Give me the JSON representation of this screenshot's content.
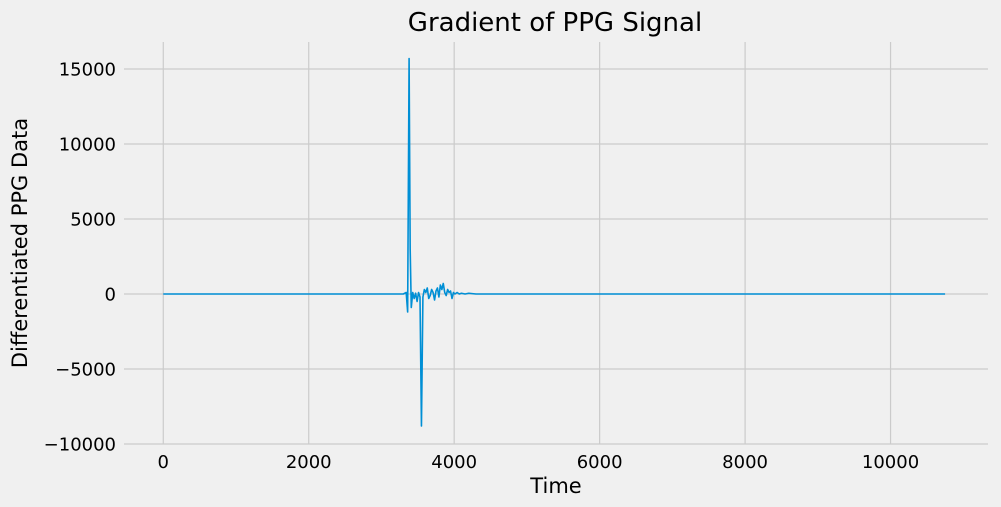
{
  "chart_data": {
    "type": "line",
    "title": "Gradient of PPG Signal",
    "xlabel": "Time",
    "ylabel": "Differentiated PPG Data",
    "xlim": [
      -540,
      11340
    ],
    "ylim": [
      -10000,
      16800
    ],
    "xticks": [
      0,
      2000,
      4000,
      6000,
      8000,
      10000
    ],
    "yticks": [
      -10000,
      -5000,
      0,
      5000,
      10000,
      15000
    ],
    "xtick_labels": [
      "0",
      "2000",
      "4000",
      "6000",
      "8000",
      "10000"
    ],
    "ytick_labels": [
      "−10000",
      "−5000",
      "0",
      "5000",
      "10000",
      "15000"
    ],
    "grid": true,
    "legend": "none",
    "colors": {
      "background": "#f0f0f0",
      "grid": "#cbcbcb",
      "line": "#008fd5"
    },
    "series": [
      {
        "x": [
          0,
          1000,
          2000,
          3000,
          3300,
          3340,
          3360,
          3380,
          3395,
          3410,
          3430,
          3450,
          3470,
          3490,
          3510,
          3530,
          3550,
          3570,
          3590,
          3610,
          3630,
          3650,
          3670,
          3690,
          3710,
          3730,
          3750,
          3770,
          3790,
          3810,
          3830,
          3850,
          3870,
          3890,
          3910,
          3930,
          3950,
          3970,
          3990,
          4010,
          4040,
          4070,
          4100,
          4150,
          4200,
          4300,
          5000,
          6000,
          7000,
          8000,
          9000,
          10000,
          10750
        ],
        "y": [
          0,
          0,
          0,
          0,
          0,
          100,
          -1200,
          15700,
          3000,
          -900,
          100,
          -300,
          50,
          -500,
          100,
          -200,
          -8800,
          -200,
          300,
          100,
          400,
          -300,
          -100,
          300,
          100,
          -400,
          200,
          400,
          -200,
          600,
          300,
          700,
          100,
          -100,
          300,
          100,
          200,
          -300,
          100,
          0,
          100,
          0,
          50,
          0,
          50,
          0,
          0,
          0,
          0,
          0,
          0,
          0,
          0
        ]
      }
    ]
  }
}
